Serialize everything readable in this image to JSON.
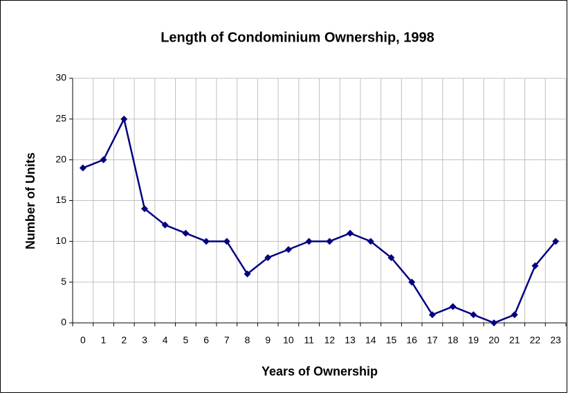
{
  "chart_data": {
    "type": "line",
    "title": "Length of Condominium Ownership, 1998",
    "x_label": "Years of Ownership",
    "y_label": "Number of Units",
    "categories": [
      "0",
      "1",
      "2",
      "3",
      "4",
      "5",
      "6",
      "7",
      "8",
      "9",
      "10",
      "11",
      "12",
      "13",
      "14",
      "15",
      "16",
      "17",
      "18",
      "19",
      "20",
      "21",
      "22",
      "23"
    ],
    "values": [
      19,
      20,
      25,
      14,
      12,
      11,
      10,
      10,
      6,
      8,
      9,
      10,
      10,
      11,
      10,
      8,
      5,
      1,
      2,
      1,
      0,
      1,
      7,
      10
    ],
    "color": "#000080",
    "ylim": [
      0,
      30
    ],
    "yticks": [
      0,
      5,
      10,
      15,
      20,
      25,
      30
    ],
    "grid": true
  }
}
